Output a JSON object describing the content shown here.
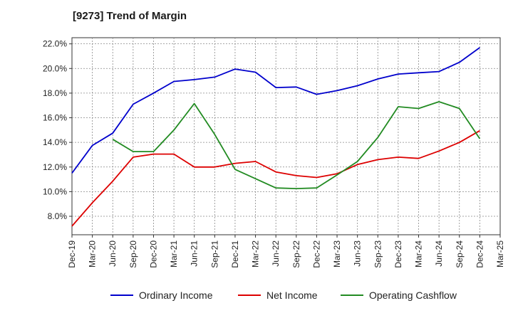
{
  "chart_data": {
    "type": "line",
    "title": "[9273]  Trend of Margin",
    "xlabel": "",
    "ylabel": "",
    "ylim": [
      6.5,
      22.5
    ],
    "y_ticks": [
      "8.0%",
      "10.0%",
      "12.0%",
      "14.0%",
      "16.0%",
      "18.0%",
      "20.0%",
      "22.0%"
    ],
    "y_tick_values": [
      8,
      10,
      12,
      14,
      16,
      18,
      20,
      22
    ],
    "categories": [
      "Dec-19",
      "Mar-20",
      "Jun-20",
      "Sep-20",
      "Dec-20",
      "Mar-21",
      "Jun-21",
      "Sep-21",
      "Dec-21",
      "Mar-22",
      "Jun-22",
      "Sep-22",
      "Dec-22",
      "Mar-23",
      "Jun-23",
      "Sep-23",
      "Dec-23",
      "Mar-24",
      "Jun-24",
      "Sep-24",
      "Dec-24",
      "Mar-25"
    ],
    "grid": true,
    "legend_position": "bottom",
    "series": [
      {
        "name": "Ordinary Income",
        "color": "#0000cc",
        "values": [
          11.5,
          13.75,
          14.75,
          17.1,
          18.0,
          18.95,
          19.1,
          19.3,
          19.95,
          19.7,
          18.45,
          18.5,
          17.9,
          18.2,
          18.6,
          19.15,
          19.55,
          19.65,
          19.75,
          20.5,
          21.7,
          null
        ]
      },
      {
        "name": "Net Income",
        "color": "#dd0000",
        "values": [
          7.2,
          9.1,
          10.85,
          12.8,
          13.05,
          13.05,
          12.0,
          12.0,
          12.3,
          12.45,
          11.6,
          11.3,
          11.15,
          11.45,
          12.2,
          12.6,
          12.8,
          12.7,
          13.3,
          14.0,
          14.95,
          null
        ]
      },
      {
        "name": "Operating Cashflow",
        "color": "#228b22",
        "values": [
          null,
          null,
          14.25,
          13.25,
          13.25,
          15.0,
          17.15,
          14.65,
          11.8,
          11.05,
          10.3,
          10.25,
          10.3,
          11.35,
          12.45,
          14.4,
          16.9,
          16.75,
          17.3,
          16.75,
          14.3,
          null
        ]
      }
    ]
  }
}
